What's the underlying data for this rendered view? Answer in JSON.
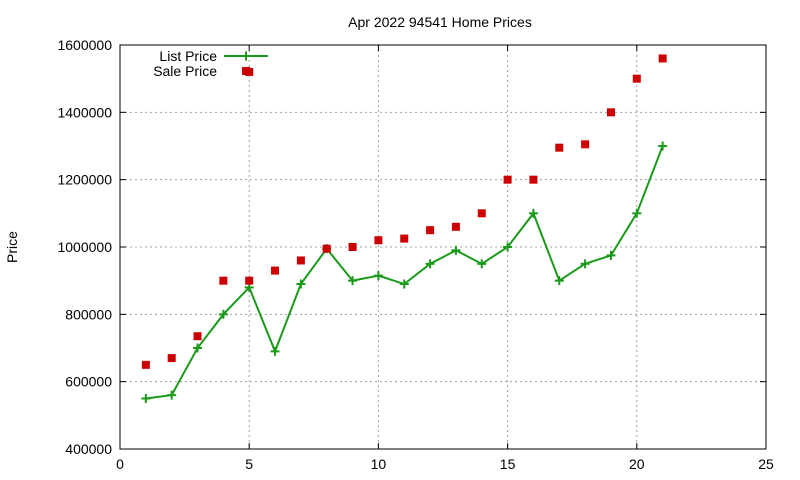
{
  "chart_data": {
    "type": "line",
    "title": "Apr 2022 94541 Home Prices",
    "xlabel": "",
    "ylabel": "Price",
    "xlim": [
      0,
      25
    ],
    "ylim": [
      400000,
      1600000
    ],
    "xticks": [
      0,
      5,
      10,
      15,
      20,
      25
    ],
    "yticks": [
      400000,
      600000,
      800000,
      1000000,
      1200000,
      1400000,
      1600000
    ],
    "grid": true,
    "legend_position": "top-left",
    "series": [
      {
        "name": "List Price",
        "style": "line-with-plus-markers",
        "color": "#1a9a1a",
        "x": [
          1,
          2,
          3,
          4,
          5,
          6,
          7,
          8,
          9,
          10,
          11,
          12,
          13,
          14,
          15,
          16,
          17,
          18,
          19,
          20,
          21
        ],
        "y": [
          550000,
          560000,
          700000,
          800000,
          880000,
          690000,
          890000,
          995000,
          900000,
          915000,
          890000,
          950000,
          990000,
          950000,
          1000000,
          1100000,
          900000,
          950000,
          975000,
          1100000,
          1300000
        ]
      },
      {
        "name": "Sale Price",
        "style": "square-markers",
        "color": "#cc0000",
        "x": [
          1,
          2,
          3,
          4,
          5,
          5,
          6,
          7,
          8,
          9,
          10,
          11,
          12,
          13,
          14,
          15,
          16,
          17,
          18,
          19,
          20,
          21
        ],
        "y": [
          650000,
          670000,
          735000,
          900000,
          900000,
          1520000,
          930000,
          960000,
          995000,
          1000000,
          1020000,
          1025000,
          1050000,
          1060000,
          1100000,
          1200000,
          1200000,
          1295000,
          1305000,
          1400000,
          1500000,
          1560000
        ]
      }
    ]
  }
}
